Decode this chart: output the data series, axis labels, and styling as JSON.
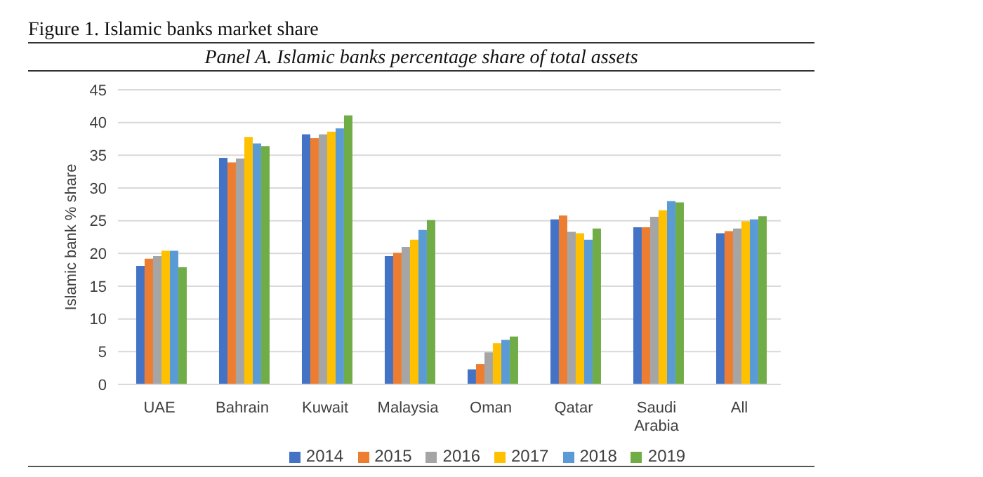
{
  "chart_data": {
    "type": "bar",
    "title": "Figure 1. Islamic banks market share",
    "subtitle": "Panel A. Islamic banks percentage share of total assets",
    "ylabel": "Islamic bank % share",
    "categories": [
      "UAE",
      "Bahrain",
      "Kuwait",
      "Malaysia",
      "Oman",
      "Qatar",
      "Saudi Arabia",
      "All"
    ],
    "series": [
      {
        "name": "2014",
        "color": "#4472c4",
        "values": [
          18.1,
          34.6,
          38.2,
          19.6,
          2.3,
          25.2,
          24.0,
          23.1
        ]
      },
      {
        "name": "2015",
        "color": "#ed7d31",
        "values": [
          19.2,
          33.9,
          37.6,
          20.1,
          3.1,
          25.8,
          24.0,
          23.4
        ]
      },
      {
        "name": "2016",
        "color": "#a5a5a5",
        "values": [
          19.6,
          34.5,
          38.2,
          21.0,
          4.9,
          23.3,
          25.6,
          23.8
        ]
      },
      {
        "name": "2017",
        "color": "#ffc000",
        "values": [
          20.4,
          37.8,
          38.6,
          22.1,
          6.3,
          23.1,
          26.6,
          24.9
        ]
      },
      {
        "name": "2018",
        "color": "#5b9bd5",
        "values": [
          20.4,
          36.8,
          39.1,
          23.6,
          6.8,
          22.1,
          28.0,
          25.2
        ]
      },
      {
        "name": "2019",
        "color": "#70ad47",
        "values": [
          17.9,
          36.4,
          41.1,
          25.1,
          7.3,
          23.8,
          27.8,
          25.7
        ]
      }
    ],
    "ylim": [
      0,
      45
    ],
    "yticks": [
      0,
      5,
      10,
      15,
      20,
      25,
      30,
      35,
      40,
      45
    ],
    "grid": "y",
    "legend": "bottom"
  }
}
